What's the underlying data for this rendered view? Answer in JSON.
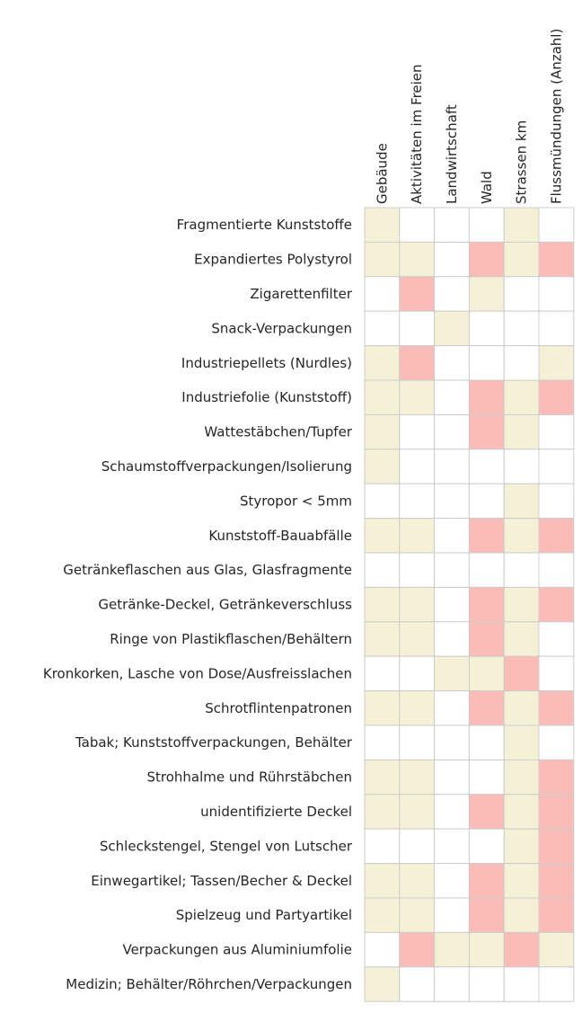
{
  "chart_data": {
    "type": "heatmap",
    "columns": [
      "Gebäude",
      "Aktivitäten im Freien",
      "Landwirtschaft",
      "Wald",
      "Strassen km",
      "Flussmündungen (Anzahl)"
    ],
    "rows": [
      "Fragmentierte Kunststoffe",
      "Expandiertes Polystyrol",
      "Zigarettenfilter",
      "Snack-Verpackungen",
      "Industriepellets (Nurdles)",
      "Industriefolie (Kunststoff)",
      "Wattestäbchen/Tupfer",
      "Schaumstoffverpackungen/Isolierung",
      "Styropor < 5mm",
      "Kunststoff-Bauabfälle",
      "Getränkeflaschen aus Glas, Glasfragmente",
      "Getränke-Deckel, Getränkeverschluss",
      "Ringe von Plastikflaschen/Behältern",
      "Kronkorken, Lasche von Dose/Ausfreisslachen",
      "Schrotflintenpatronen",
      "Tabak; Kunststoffverpackungen, Behälter",
      "Strohhalme und Rührstäbchen",
      "unidentifizierte Deckel",
      "Schleckstengel, Stengel von Lutscher",
      "Einwegartikel; Tassen/Becher & Deckel",
      "Spielzeug und Partyartikel",
      "Verpackungen aus Aluminiumfolie",
      "Medizin; Behälter/Röhrchen/Verpackungen"
    ],
    "values": [
      [
        1,
        0,
        0,
        0,
        1,
        0
      ],
      [
        1,
        1,
        0,
        -1,
        1,
        -1
      ],
      [
        0,
        -1,
        0,
        1,
        0,
        0
      ],
      [
        0,
        0,
        1,
        0,
        0,
        0
      ],
      [
        1,
        -1,
        0,
        0,
        0,
        1
      ],
      [
        1,
        1,
        0,
        -1,
        1,
        -1
      ],
      [
        1,
        0,
        0,
        -1,
        1,
        0
      ],
      [
        1,
        0,
        0,
        0,
        0,
        0
      ],
      [
        0,
        0,
        0,
        0,
        1,
        0
      ],
      [
        1,
        1,
        0,
        -1,
        1,
        -1
      ],
      [
        0,
        0,
        0,
        0,
        0,
        0
      ],
      [
        1,
        1,
        0,
        -1,
        1,
        -1
      ],
      [
        1,
        1,
        0,
        -1,
        1,
        0
      ],
      [
        0,
        0,
        1,
        1,
        -1,
        0
      ],
      [
        1,
        1,
        0,
        -1,
        1,
        -1
      ],
      [
        0,
        0,
        0,
        0,
        1,
        0
      ],
      [
        1,
        1,
        0,
        0,
        1,
        -1
      ],
      [
        1,
        1,
        0,
        -1,
        1,
        -1
      ],
      [
        0,
        0,
        0,
        0,
        1,
        -1
      ],
      [
        1,
        1,
        0,
        -1,
        1,
        -1
      ],
      [
        1,
        1,
        0,
        -1,
        1,
        -1
      ],
      [
        0,
        -1,
        1,
        1,
        -1,
        1
      ],
      [
        1,
        0,
        0,
        0,
        0,
        0
      ]
    ],
    "value_colors": {
      "1": "#f5f1d6",
      "-1": "#fbbcb8",
      "0": "#ffffff"
    },
    "grid_color": "#cccccc",
    "legend": "none"
  }
}
